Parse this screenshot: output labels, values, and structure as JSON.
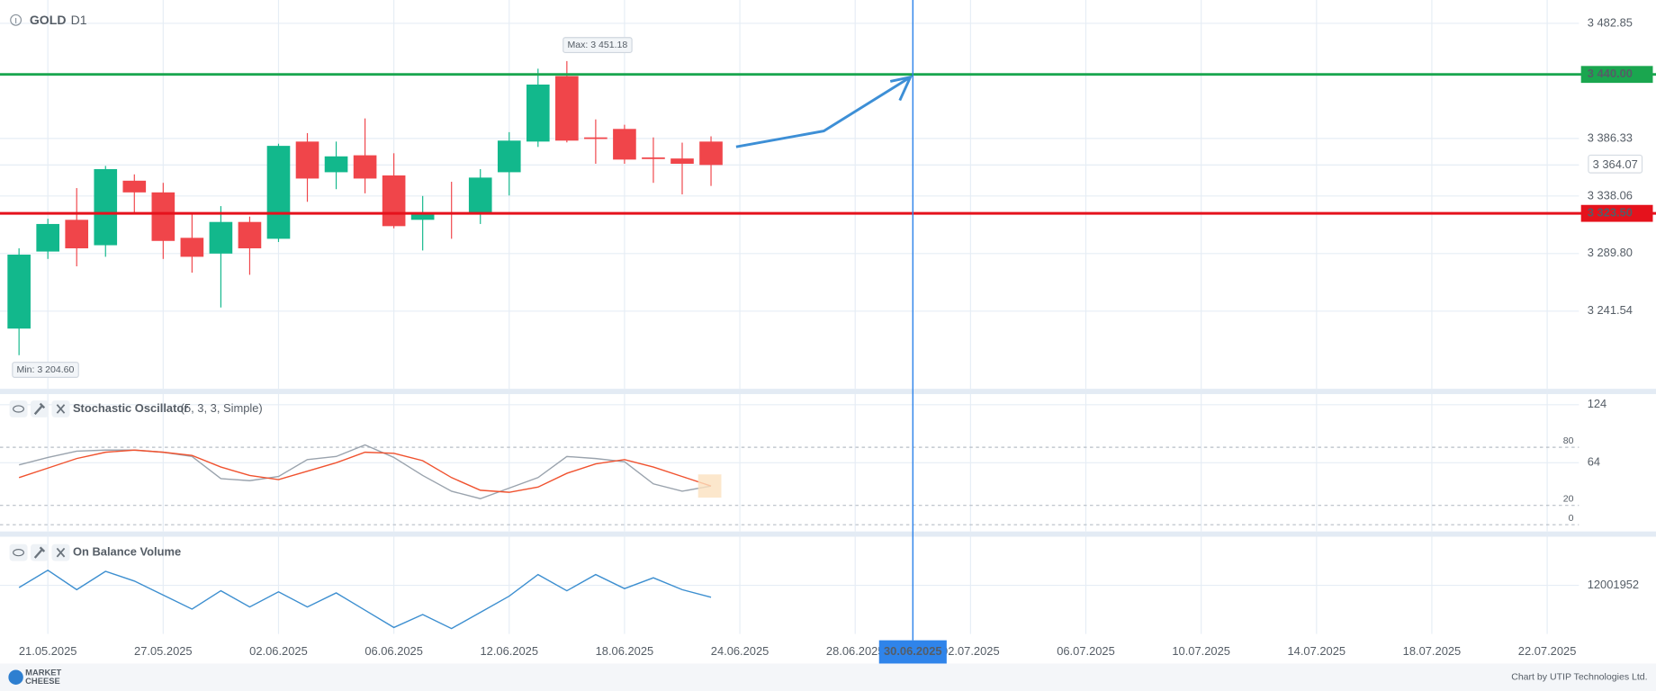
{
  "chart_data": [
    {
      "type": "candlestick",
      "title": "GOLD",
      "timeframe": "D1",
      "xlim": [
        -0.66,
        54.1
      ],
      "xticks": [
        {
          "value": 1,
          "label": "21.05.2025"
        },
        {
          "value": 5,
          "label": "27.05.2025"
        },
        {
          "value": 9,
          "label": "02.06.2025"
        },
        {
          "value": 13,
          "label": "06.06.2025"
        },
        {
          "value": 17,
          "label": "12.06.2025"
        },
        {
          "value": 21,
          "label": "18.06.2025"
        },
        {
          "value": 25,
          "label": "24.06.2025"
        },
        {
          "value": 29,
          "label": "28.06.2025"
        },
        {
          "value": 33,
          "label": "02.07.2025"
        },
        {
          "value": 37,
          "label": "06.07.2025"
        },
        {
          "value": 41,
          "label": "10.07.2025"
        },
        {
          "value": 45,
          "label": "14.07.2025"
        },
        {
          "value": 49,
          "label": "18.07.2025"
        },
        {
          "value": 53,
          "label": "22.07.2025"
        }
      ],
      "ylim": [
        3176.4,
        3502.4
      ],
      "yticks": [
        {
          "value": 3482.85,
          "label": "3 482.85"
        },
        {
          "value": 3386.33,
          "label": "3 386.33"
        },
        {
          "value": 3338.06,
          "label": "3 338.06"
        },
        {
          "value": 3289.8,
          "label": "3 289.80"
        },
        {
          "value": 3241.54,
          "label": "3 241.54"
        }
      ],
      "grid": true,
      "up_color": "#12b88c",
      "down_color": "#f0454a",
      "open": [
        3226.9,
        3291.5,
        3318.1,
        3296.8,
        3350.9,
        3341.1,
        3303.0,
        3289.8,
        3316.3,
        3302.2,
        3383.7,
        3358.0,
        3372.2,
        3355.3,
        3318.1,
        3324.3,
        3323.4,
        3358.0,
        3383.7,
        3438.6,
        3387.2,
        3394.3,
        3370.4,
        3369.5,
        3383.7
      ],
      "high": [
        3294.2,
        3319.0,
        3344.7,
        3363.3,
        3356.2,
        3349.1,
        3323.4,
        3329.6,
        3320.8,
        3381.9,
        3390.8,
        3383.7,
        3403.1,
        3373.9,
        3338.1,
        3350.0,
        3360.6,
        3391.6,
        3444.8,
        3451.18,
        3402.3,
        3397.8,
        3387.2,
        3382.8,
        3388.1
      ],
      "low": [
        3204.6,
        3285.3,
        3279.1,
        3287.1,
        3323.4,
        3285.3,
        3273.8,
        3244.6,
        3272.0,
        3299.5,
        3333.2,
        3343.8,
        3340.3,
        3311.0,
        3292.4,
        3302.2,
        3314.6,
        3338.5,
        3379.2,
        3383.0,
        3365.1,
        3365.1,
        3349.1,
        3339.4,
        3346.5
      ],
      "close": [
        3288.9,
        3314.6,
        3294.2,
        3360.6,
        3341.1,
        3300.4,
        3287.1,
        3316.3,
        3294.2,
        3380.1,
        3352.7,
        3371.3,
        3352.7,
        3312.8,
        3324.3,
        3323.5,
        3353.5,
        3384.5,
        3431.5,
        3384.5,
        3386.3,
        3368.6,
        3370.0,
        3365.1,
        3364.07
      ],
      "last_label": "3 364.07",
      "max_label": "Max: 3 451.18",
      "min_label": "Min: 3 204.60",
      "hlines": [
        {
          "value": 3440.0,
          "label": "3 440.00",
          "color": "#1aa64f"
        },
        {
          "value": 3323.5,
          "label": "3 323.50",
          "color": "#e5121c"
        }
      ],
      "vline": {
        "value": 31,
        "label": "30.06.2025",
        "color": "#2f84ea"
      }
    },
    {
      "type": "line",
      "title": "Stochastic Oscillator",
      "params": "(5, 3, 3, Simple)",
      "ylim": [
        -7,
        135
      ],
      "yticks": [
        124,
        64
      ],
      "levels": [
        80,
        20,
        0
      ],
      "series": [
        {
          "color": "#9aa3ad",
          "values": [
            61.8,
            69.5,
            76.0,
            77.1,
            77.1,
            74.9,
            70.5,
            47.6,
            45.5,
            49.8,
            67.3,
            70.5,
            82.5,
            69.5,
            50.9,
            34.6,
            26.9,
            37.8,
            48.7,
            70.5,
            68.4,
            65.1,
            42.2,
            34.6,
            40.0
          ]
        },
        {
          "color": "#f0522f",
          "values": [
            48.7,
            58.5,
            68.4,
            74.9,
            77.1,
            74.9,
            71.6,
            59.6,
            50.9,
            46.6,
            55.3,
            64.0,
            74.9,
            73.8,
            66.2,
            48.7,
            35.6,
            33.5,
            38.9,
            53.1,
            62.9,
            67.3,
            59.6,
            49.8,
            40.0
          ]
        }
      ]
    },
    {
      "type": "line",
      "title": "On Balance Volume",
      "ylim": [
        3001952,
        21001952
      ],
      "yticks": [
        12001952
      ],
      "series": [
        {
          "color": "#3d8fd0",
          "values": [
            11600000,
            14800000,
            11200000,
            14600000,
            12800000,
            10200000,
            7600000,
            11000000,
            8000000,
            10800000,
            8000000,
            10600000,
            7400000,
            4200000,
            6600000,
            4000000,
            7000000,
            10000000,
            14000000,
            11000000,
            14000000,
            11400000,
            13400000,
            11200000,
            9800000
          ]
        }
      ]
    }
  ],
  "footer": {
    "logo": [
      "MARKET",
      "CHEESE"
    ],
    "credit": "Chart by UTIP Technologies Ltd."
  }
}
